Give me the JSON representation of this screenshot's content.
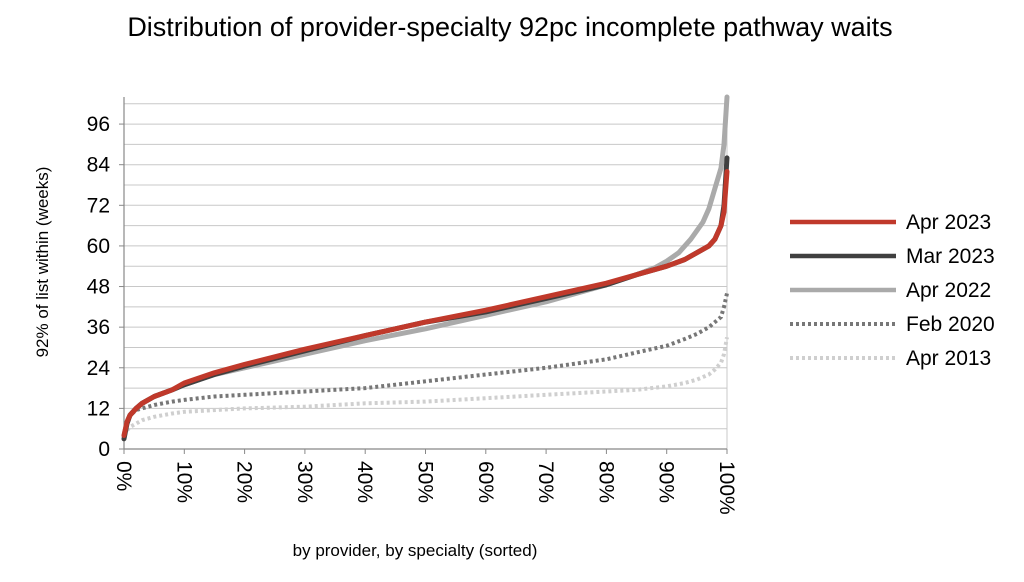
{
  "chart_data": {
    "type": "line",
    "title": "Distribution of provider-specialty 92pc incomplete pathway waits",
    "xlabel": "by provider, by specialty (sorted)",
    "ylabel": "92% of list within (weeks)",
    "xlim": [
      0,
      100
    ],
    "ylim": [
      0,
      104
    ],
    "y_ticks": [
      0,
      12,
      24,
      36,
      48,
      60,
      72,
      84,
      96
    ],
    "y_tick_labels": [
      "0",
      "12",
      "24",
      "36",
      "48",
      "60",
      "72",
      "84",
      "96"
    ],
    "x_ticks": [
      0,
      10,
      20,
      30,
      40,
      50,
      60,
      70,
      80,
      90,
      100
    ],
    "x_tick_labels": [
      "0%",
      "10%",
      "20%",
      "30%",
      "40%",
      "50%",
      "60%",
      "70%",
      "80%",
      "90%",
      "100%"
    ],
    "grid": "horizontal",
    "legend_position": "right",
    "series": [
      {
        "name": "Apr 2023",
        "color": "#c0392b",
        "style": "solid",
        "x": [
          0,
          0.5,
          1,
          2,
          3,
          5,
          8,
          10,
          15,
          20,
          30,
          40,
          50,
          60,
          70,
          80,
          85,
          90,
          93,
          95,
          97,
          98,
          99,
          99.5,
          100
        ],
        "y": [
          4,
          8,
          10,
          12,
          13.5,
          15.5,
          17.5,
          19.5,
          22.5,
          25,
          29.5,
          33.5,
          37.5,
          41,
          45,
          49,
          51.5,
          54,
          56,
          58,
          60,
          62,
          66,
          70,
          82
        ]
      },
      {
        "name": "Mar 2023",
        "color": "#404040",
        "style": "solid",
        "x": [
          0,
          0.5,
          1,
          2,
          3,
          5,
          8,
          10,
          15,
          20,
          30,
          40,
          50,
          60,
          70,
          80,
          85,
          90,
          93,
          95,
          97,
          98,
          99,
          99.5,
          100
        ],
        "y": [
          3,
          7.5,
          10,
          12,
          13.5,
          15.5,
          17.5,
          19,
          22,
          24.5,
          29,
          33.5,
          37.5,
          40.5,
          44.5,
          48.5,
          51.5,
          54,
          56,
          58,
          60,
          62,
          66,
          72,
          86
        ]
      },
      {
        "name": "Apr 2022",
        "color": "#aaaaaa",
        "style": "solid",
        "x": [
          0,
          0.5,
          1,
          2,
          3,
          5,
          8,
          10,
          15,
          20,
          30,
          40,
          50,
          60,
          70,
          80,
          85,
          88,
          90,
          92,
          94,
          96,
          97,
          98,
          99,
          99.5,
          100
        ],
        "y": [
          4,
          8,
          10,
          12,
          13.5,
          15.5,
          17.5,
          19,
          22,
          24,
          28,
          32,
          35.5,
          39.5,
          43.5,
          48.5,
          51.5,
          53.5,
          55.5,
          58,
          62,
          67,
          71,
          77,
          83,
          90,
          104
        ]
      },
      {
        "name": "Feb 2020",
        "color": "#777777",
        "style": "dotted",
        "x": [
          0,
          0.5,
          1,
          2,
          3,
          5,
          8,
          10,
          15,
          20,
          30,
          40,
          50,
          60,
          70,
          80,
          85,
          90,
          93,
          95,
          97,
          98,
          99,
          99.5,
          100
        ],
        "y": [
          4,
          8,
          10,
          11.5,
          12,
          13,
          14,
          14.5,
          15.5,
          16,
          17,
          18,
          20,
          22,
          24,
          26.5,
          28.5,
          30.5,
          32.5,
          34,
          36,
          37.5,
          39,
          42,
          46
        ]
      },
      {
        "name": "Apr 2013",
        "color": "#cfcfcf",
        "style": "dotted",
        "x": [
          0,
          0.5,
          1,
          2,
          3,
          5,
          8,
          10,
          15,
          20,
          30,
          40,
          50,
          60,
          70,
          80,
          85,
          90,
          93,
          95,
          97,
          98,
          99,
          99.5,
          100
        ],
        "y": [
          4,
          5.5,
          6.5,
          7.5,
          8.5,
          9.5,
          10.5,
          11,
          11.5,
          12,
          12.5,
          13.5,
          14,
          15,
          16,
          17,
          17.5,
          18.5,
          19.5,
          20.5,
          22,
          23.5,
          25.5,
          28,
          33
        ]
      }
    ]
  }
}
